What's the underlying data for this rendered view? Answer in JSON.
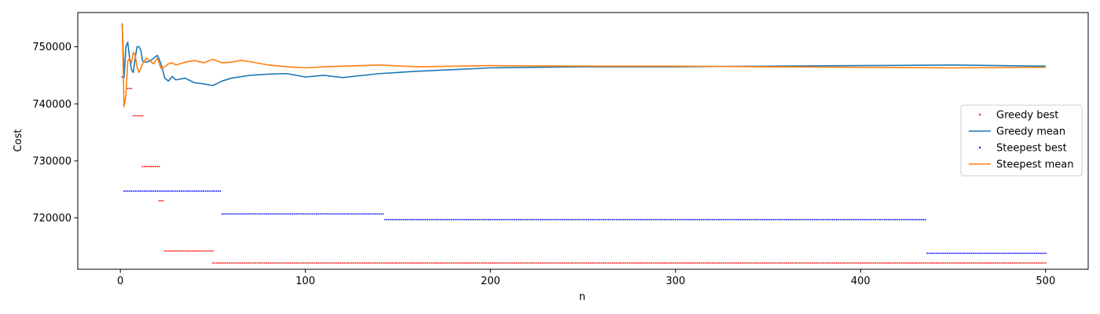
{
  "chart_data": {
    "type": "line",
    "title": "",
    "xlabel": "n",
    "ylabel": "Cost",
    "xlim": [
      -23,
      523
    ],
    "ylim": [
      711000,
      756000
    ],
    "xticks": [
      0,
      100,
      200,
      300,
      400,
      500
    ],
    "xtick_labels": [
      "0",
      "100",
      "200",
      "300",
      "400",
      "500"
    ],
    "yticks": [
      720000,
      730000,
      740000,
      750000
    ],
    "ytick_labels": [
      "720000",
      "730000",
      "740000",
      "750000"
    ],
    "grid": false,
    "legend_position": "center-right",
    "legend": [
      {
        "label": "Greedy best",
        "kind": "marker",
        "color": "#ff0000"
      },
      {
        "label": "Greedy mean",
        "kind": "line",
        "color": "#1f77b4"
      },
      {
        "label": "Steepest best",
        "kind": "marker",
        "color": "#0000ff"
      },
      {
        "label": "Steepest mean",
        "kind": "line",
        "color": "#ff7f0e"
      }
    ],
    "series": [
      {
        "name": "Greedy best",
        "kind": "points",
        "color": "#ff0000",
        "segments": [
          {
            "from": 1,
            "to": 1,
            "y": 754000
          },
          {
            "from": 4,
            "to": 6,
            "y": 742700
          },
          {
            "from": 7,
            "to": 12,
            "y": 737900
          },
          {
            "from": 12,
            "to": 21,
            "y": 729000
          },
          {
            "from": 21,
            "to": 23,
            "y": 723000
          },
          {
            "from": 24,
            "to": 50,
            "y": 714200
          },
          {
            "from": 50,
            "to": 500,
            "y": 712100
          }
        ]
      },
      {
        "name": "Greedy mean",
        "kind": "line",
        "color": "#1f77b4",
        "x": [
          1,
          2,
          3,
          4,
          5,
          6,
          7,
          8,
          9,
          10,
          11,
          12,
          14,
          16,
          18,
          20,
          22,
          24,
          26,
          28,
          30,
          35,
          40,
          45,
          50,
          55,
          60,
          70,
          80,
          90,
          100,
          110,
          120,
          140,
          160,
          180,
          200,
          250,
          300,
          350,
          400,
          450,
          500
        ],
        "y": [
          754000,
          744500,
          750000,
          750800,
          748000,
          746000,
          745500,
          748000,
          750000,
          750000,
          749500,
          747500,
          747300,
          747500,
          748000,
          748500,
          747000,
          744500,
          744000,
          744800,
          744200,
          744500,
          743700,
          743500,
          743200,
          744000,
          744500,
          745000,
          745200,
          745300,
          744700,
          745000,
          744600,
          745300,
          745700,
          746000,
          746300,
          746500,
          746500,
          746600,
          746700,
          746800,
          746600
        ]
      },
      {
        "name": "Steepest best",
        "kind": "points",
        "color": "#0000ff",
        "segments": [
          {
            "from": 1,
            "to": 1,
            "y": 744700
          },
          {
            "from": 2,
            "to": 54,
            "y": 724700
          },
          {
            "from": 55,
            "to": 142,
            "y": 720700
          },
          {
            "from": 143,
            "to": 435,
            "y": 719700
          },
          {
            "from": 436,
            "to": 500,
            "y": 713800
          }
        ]
      },
      {
        "name": "Steepest mean",
        "kind": "line",
        "color": "#ff7f0e",
        "x": [
          1,
          2,
          3,
          4,
          5,
          6,
          7,
          8,
          9,
          10,
          11,
          12,
          14,
          16,
          18,
          20,
          22,
          24,
          26,
          28,
          30,
          35,
          40,
          45,
          50,
          55,
          60,
          65,
          70,
          80,
          90,
          100,
          110,
          120,
          140,
          160,
          180,
          200,
          250,
          300,
          350,
          400,
          450,
          500
        ],
        "y": [
          754000,
          739500,
          741500,
          747500,
          748000,
          747200,
          749000,
          748500,
          746500,
          745500,
          746200,
          747000,
          748000,
          747500,
          747000,
          748000,
          746200,
          746500,
          747000,
          747200,
          746800,
          747300,
          747600,
          747200,
          747800,
          747200,
          747300,
          747600,
          747400,
          746800,
          746500,
          746300,
          746500,
          746600,
          746800,
          746500,
          746600,
          746700,
          746600,
          746600,
          746500,
          746400,
          746300,
          746400
        ]
      }
    ]
  }
}
